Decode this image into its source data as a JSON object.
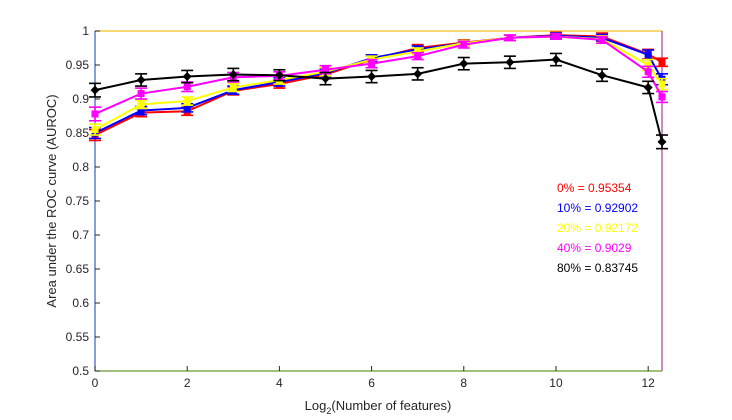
{
  "chart_data": {
    "type": "line",
    "title": "",
    "xlabel_main": "Log",
    "xlabel_sub": "2",
    "xlabel_rest": "(Number of features)",
    "ylabel": "Area under the ROC curve (AUROC)",
    "xlim": [
      0,
      12.3
    ],
    "ylim": [
      0.5,
      1
    ],
    "xticks": [
      0,
      2,
      4,
      6,
      8,
      10,
      12
    ],
    "xtick_labels": [
      "0",
      "2",
      "4",
      "6",
      "8",
      "10",
      "12"
    ],
    "yticks": [
      0.5,
      0.55,
      0.6,
      0.65,
      0.7,
      0.75,
      0.8,
      0.85,
      0.9,
      0.95,
      1
    ],
    "ytick_labels": [
      "0.5",
      "0.55",
      "0.6",
      "0.65",
      "0.7",
      "0.75",
      "0.8",
      "0.85",
      "0.9",
      "0.95",
      "1"
    ],
    "grid": false,
    "x": [
      0,
      1,
      2,
      3,
      4,
      5,
      6,
      7,
      8,
      9,
      10,
      11,
      12,
      12.3
    ],
    "series": [
      {
        "name": "0%",
        "color": "#ff0000",
        "marker": "square",
        "values": [
          0.847,
          0.88,
          0.882,
          0.912,
          0.922,
          0.936,
          0.958,
          0.975,
          0.983,
          0.99,
          0.994,
          0.992,
          0.966,
          0.954
        ],
        "errors": [
          0.008,
          0.006,
          0.006,
          0.006,
          0.006,
          0.006,
          0.005,
          0.005,
          0.004,
          0.004,
          0.004,
          0.005,
          0.007,
          0.006
        ]
      },
      {
        "name": "10%",
        "color": "#0000ff",
        "marker": "square",
        "values": [
          0.85,
          0.883,
          0.887,
          0.913,
          0.925,
          0.938,
          0.96,
          0.973,
          0.982,
          0.99,
          0.993,
          0.99,
          0.965,
          0.929
        ],
        "errors": [
          0.008,
          0.006,
          0.006,
          0.006,
          0.006,
          0.006,
          0.005,
          0.005,
          0.004,
          0.004,
          0.004,
          0.005,
          0.007,
          0.008
        ]
      },
      {
        "name": "20%",
        "color": "#ffff00",
        "marker": "square",
        "values": [
          0.855,
          0.892,
          0.897,
          0.917,
          0.928,
          0.94,
          0.958,
          0.97,
          0.982,
          0.99,
          0.992,
          0.988,
          0.95,
          0.922
        ],
        "errors": [
          0.008,
          0.006,
          0.006,
          0.006,
          0.006,
          0.006,
          0.005,
          0.005,
          0.004,
          0.004,
          0.004,
          0.005,
          0.008,
          0.008
        ]
      },
      {
        "name": "40%",
        "color": "#ff00ff",
        "marker": "square",
        "values": [
          0.878,
          0.908,
          0.918,
          0.932,
          0.934,
          0.943,
          0.952,
          0.963,
          0.98,
          0.99,
          0.992,
          0.987,
          0.94,
          0.903
        ],
        "errors": [
          0.01,
          0.008,
          0.007,
          0.007,
          0.006,
          0.006,
          0.006,
          0.005,
          0.005,
          0.004,
          0.004,
          0.005,
          0.008,
          0.008
        ]
      },
      {
        "name": "80%",
        "color": "#000000",
        "marker": "diamond",
        "values": [
          0.913,
          0.928,
          0.933,
          0.936,
          0.935,
          0.93,
          0.933,
          0.937,
          0.952,
          0.954,
          0.958,
          0.935,
          0.917,
          0.837
        ],
        "errors": [
          0.01,
          0.009,
          0.009,
          0.009,
          0.008,
          0.009,
          0.009,
          0.009,
          0.009,
          0.009,
          0.009,
          0.009,
          0.009,
          0.01
        ]
      }
    ],
    "annotations": [
      {
        "text": "0% = 0.95354",
        "color": "#ff0000"
      },
      {
        "text": "10% = 0.92902",
        "color": "#0000ff"
      },
      {
        "text": "20% = 0.92172",
        "color": "#ffff00"
      },
      {
        "text": "40% = 0.9029",
        "color": "#ff00ff"
      },
      {
        "text": "80% = 0.83745",
        "color": "#000000"
      }
    ],
    "annotation_placement": "right-middle"
  }
}
